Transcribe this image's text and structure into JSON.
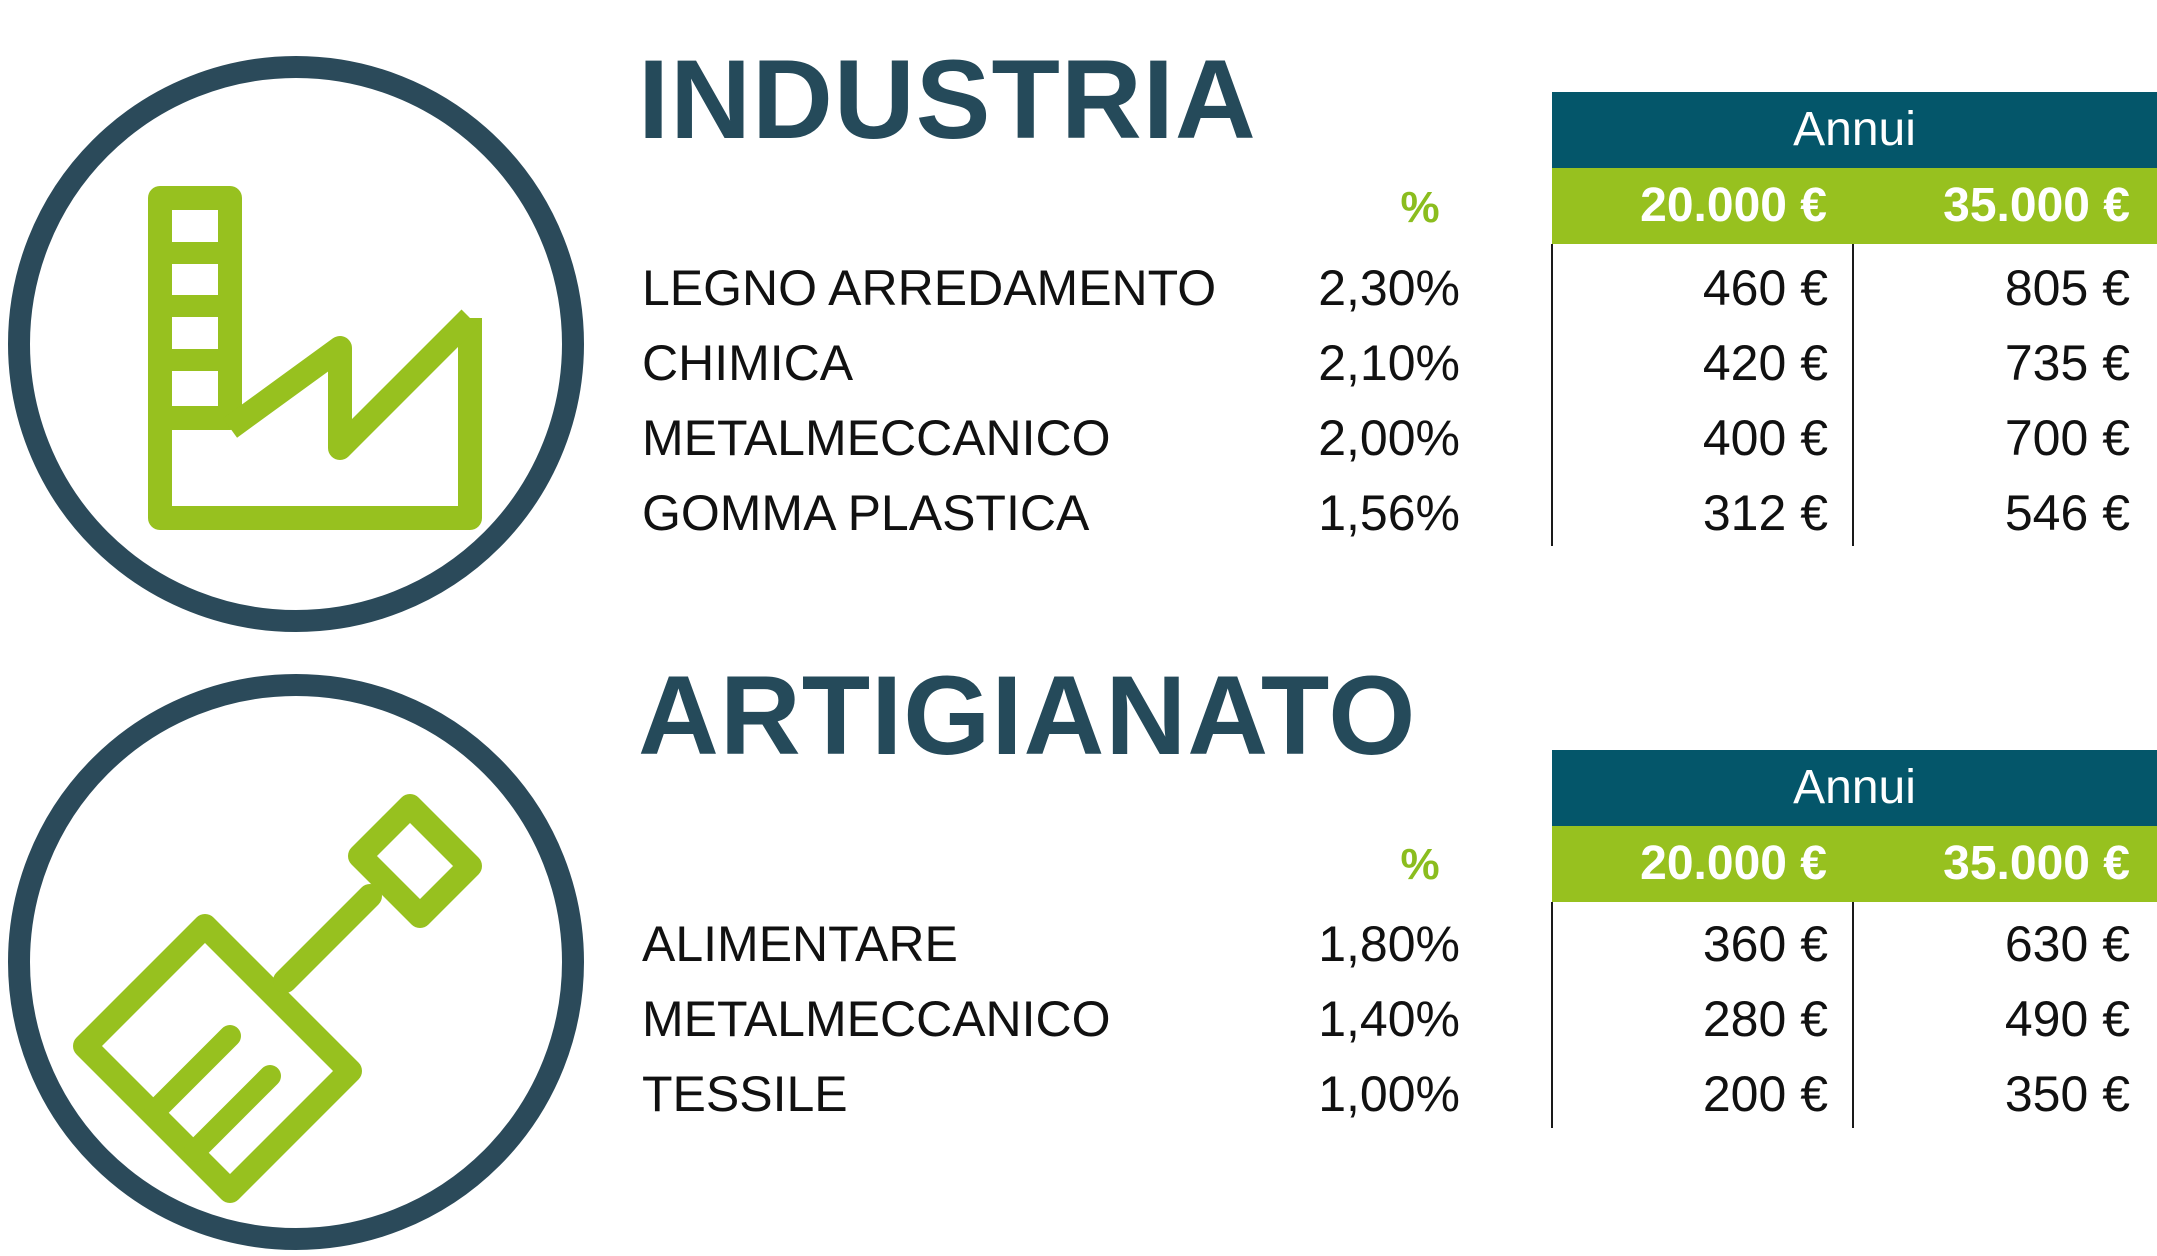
{
  "colors": {
    "navy": "#254a5a",
    "teal_header": "#04566a",
    "green_accent": "#97c11f"
  },
  "sections": [
    {
      "title": "INDUSTRIA",
      "icon": "factory-icon",
      "percent_header": "%",
      "group_header": "Annui",
      "amount_headers": [
        "20.000 €",
        "35.000 €"
      ],
      "rows": [
        {
          "label": "LEGNO ARREDAMENTO",
          "percent": "2,30%",
          "amount_1": "460 €",
          "amount_2": "805 €"
        },
        {
          "label": "CHIMICA",
          "percent": "2,10%",
          "amount_1": "420 €",
          "amount_2": "735 €"
        },
        {
          "label": "METALMECCANICO",
          "percent": "2,00%",
          "amount_1": "400 €",
          "amount_2": "700 €"
        },
        {
          "label": "GOMMA PLASTICA",
          "percent": "1,56%",
          "amount_1": "312 €",
          "amount_2": "546 €"
        }
      ]
    },
    {
      "title": "ARTIGIANATO",
      "icon": "screwdriver-icon",
      "percent_header": "%",
      "group_header": "Annui",
      "amount_headers": [
        "20.000 €",
        "35.000 €"
      ],
      "rows": [
        {
          "label": "ALIMENTARE",
          "percent": "1,80%",
          "amount_1": "360 €",
          "amount_2": "630 €"
        },
        {
          "label": "METALMECCANICO",
          "percent": "1,40%",
          "amount_1": "280 €",
          "amount_2": "490 €"
        },
        {
          "label": "TESSILE",
          "percent": "1,00%",
          "amount_1": "200 €",
          "amount_2": "350 €"
        }
      ]
    }
  ]
}
